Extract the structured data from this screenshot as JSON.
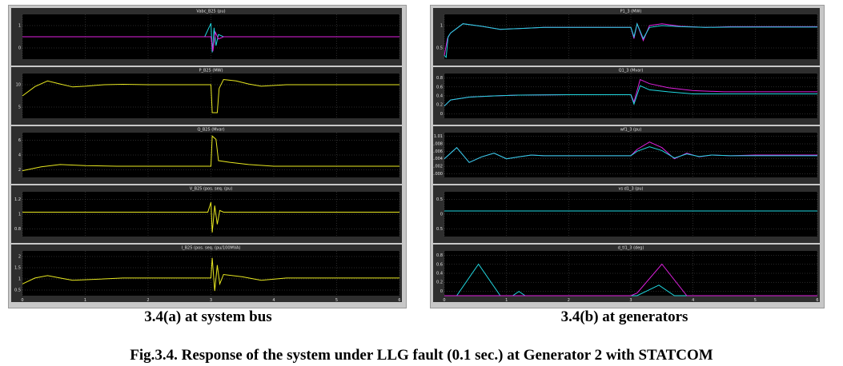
{
  "figure": {
    "caption": "Fig.3.4. Response of the system under LLG fault (0.1 sec.) at Generator 2 with STATCOM",
    "left_caption": "3.4(a) at system bus",
    "right_caption": "3.4(b) at generators"
  },
  "colors": {
    "plot_bg": "#000000",
    "grid": "#555555",
    "frame": "#c8c8c8",
    "yellow": "#e8e820",
    "cyan": "#20d8e0",
    "magenta": "#e020e0"
  },
  "chart_data": [
    {
      "type": "line",
      "group": "a",
      "title": "Vabc_B25 (pu)",
      "ylim": [
        0,
        2
      ],
      "yticks": [
        "1",
        "0"
      ],
      "x_ticks": [
        "0",
        "1",
        "2",
        "3",
        "4",
        "5",
        "6"
      ],
      "series": [
        {
          "color": "cyan",
          "x": [
            0,
            2.9,
            3.0,
            3.02,
            3.05,
            3.08,
            3.12,
            3.2,
            6
          ],
          "y": [
            1,
            1,
            1.6,
            0.3,
            1.4,
            0.6,
            1.1,
            1,
            1
          ]
        },
        {
          "color": "magenta",
          "x": [
            0,
            3.0,
            3.03,
            3.07,
            3.12,
            3.2,
            6
          ],
          "y": [
            1,
            1,
            0.35,
            1.2,
            0.9,
            1,
            1
          ]
        }
      ]
    },
    {
      "type": "line",
      "group": "a",
      "title": "P_B25 (MW)",
      "ylim": [
        0,
        12
      ],
      "yticks": [
        "10",
        "5"
      ],
      "x_ticks": [
        "0",
        "1",
        "2",
        "3",
        "4",
        "5",
        "6"
      ],
      "series": [
        {
          "color": "yellow",
          "x": [
            0,
            0.2,
            0.4,
            0.6,
            0.8,
            1.0,
            1.3,
            1.6,
            2.0,
            3.0,
            3.02,
            3.1,
            3.13,
            3.2,
            3.4,
            3.6,
            3.8,
            4.2,
            4.6,
            6
          ],
          "y": [
            6,
            8.5,
            10,
            9.2,
            8.4,
            8.6,
            9,
            9.1,
            9,
            9,
            1.5,
            1.5,
            8,
            10.4,
            10,
            9.2,
            8.6,
            9,
            9,
            9
          ]
        }
      ]
    },
    {
      "type": "line",
      "group": "a",
      "title": "Q_B25 (Mvar)",
      "ylim": [
        0,
        8
      ],
      "yticks": [
        "6",
        "4",
        "2"
      ],
      "x_ticks": [
        "0",
        "1",
        "2",
        "3",
        "4",
        "5",
        "6"
      ],
      "series": [
        {
          "color": "yellow",
          "x": [
            0,
            0.3,
            0.6,
            1.0,
            1.5,
            2.0,
            3.0,
            3.02,
            3.08,
            3.12,
            3.3,
            3.6,
            4.0,
            6
          ],
          "y": [
            1.2,
            1.9,
            2.3,
            2.1,
            2,
            2,
            2,
            7.4,
            6.8,
            3,
            2.7,
            2.3,
            2,
            2
          ]
        }
      ]
    },
    {
      "type": "line",
      "group": "a",
      "title": "V_B25 (pos. seq. (pu)",
      "ylim": [
        0.7,
        1.25
      ],
      "yticks": [
        "1.2",
        "1",
        "0.8"
      ],
      "x_ticks": [
        "0",
        "1",
        "2",
        "3",
        "4",
        "5",
        "6"
      ],
      "series": [
        {
          "color": "yellow",
          "x": [
            0,
            2.95,
            3.0,
            3.02,
            3.06,
            3.1,
            3.14,
            3.2,
            6
          ],
          "y": [
            1,
            1,
            1.12,
            0.75,
            1.08,
            0.85,
            1.02,
            1,
            1
          ]
        }
      ]
    },
    {
      "type": "line",
      "group": "a",
      "title": "I_B25 (pos. seq. (pu/100MVA)",
      "ylim": [
        0.2,
        2.1
      ],
      "yticks": [
        "2",
        "1.5",
        "1",
        "0.5"
      ],
      "x_ticks": [
        "0",
        "1",
        "2",
        "3",
        "4",
        "5",
        "6"
      ],
      "series": [
        {
          "color": "yellow",
          "x": [
            0,
            0.2,
            0.4,
            0.6,
            0.8,
            1.2,
            1.6,
            3.0,
            3.02,
            3.06,
            3.1,
            3.14,
            3.2,
            3.5,
            3.8,
            4.2,
            6
          ],
          "y": [
            0.7,
            0.95,
            1.05,
            0.95,
            0.85,
            0.9,
            0.95,
            0.95,
            1.8,
            0.4,
            1.5,
            0.7,
            1.1,
            1.0,
            0.85,
            0.95,
            0.95
          ]
        }
      ]
    },
    {
      "type": "line",
      "group": "b",
      "title": "P1_3 (MW)",
      "ylim": [
        0,
        1.2
      ],
      "yticks": [
        "1",
        "0.5"
      ],
      "x_ticks": [
        "0",
        "1",
        "2",
        "3",
        "4",
        "5",
        "6"
      ],
      "series": [
        {
          "color": "magenta",
          "x": [
            0,
            0.05,
            0.1,
            0.3,
            0.6,
            0.9,
            1.2,
            1.6,
            2.0,
            3.0,
            3.05,
            3.1,
            3.2,
            3.3,
            3.5,
            3.8,
            4.2,
            4.6,
            6
          ],
          "y": [
            0.1,
            0.55,
            0.7,
            0.95,
            0.88,
            0.8,
            0.82,
            0.85,
            0.85,
            0.85,
            0.55,
            0.95,
            0.5,
            0.9,
            0.95,
            0.88,
            0.85,
            0.87,
            0.87
          ]
        },
        {
          "color": "cyan",
          "x": [
            0,
            0.03,
            0.06,
            0.1,
            0.3,
            0.6,
            0.9,
            1.2,
            1.6,
            2.0,
            3.0,
            3.05,
            3.1,
            3.2,
            3.3,
            3.5,
            3.8,
            4.2,
            4.6,
            6
          ],
          "y": [
            0.1,
            0.05,
            0.6,
            0.7,
            0.95,
            0.88,
            0.8,
            0.82,
            0.85,
            0.85,
            0.85,
            0.6,
            0.95,
            0.55,
            0.85,
            0.9,
            0.87,
            0.85,
            0.86,
            0.86
          ]
        }
      ]
    },
    {
      "type": "line",
      "group": "b",
      "title": "Q1_3 (Mvar)",
      "ylim": [
        -0.1,
        1.0
      ],
      "yticks": [
        "0.8",
        "0.6",
        "0.4",
        "0.2",
        "0"
      ],
      "x_ticks": [
        "0",
        "1",
        "2",
        "3",
        "4",
        "5",
        "6"
      ],
      "series": [
        {
          "color": "magenta",
          "x": [
            0,
            0.1,
            0.4,
            0.8,
            1.2,
            2.0,
            3.0,
            3.05,
            3.15,
            3.3,
            3.6,
            4.0,
            4.5,
            6
          ],
          "y": [
            0.2,
            0.35,
            0.42,
            0.45,
            0.47,
            0.48,
            0.48,
            0.3,
            0.85,
            0.75,
            0.65,
            0.58,
            0.55,
            0.55
          ]
        },
        {
          "color": "cyan",
          "x": [
            0,
            0.1,
            0.4,
            0.8,
            1.2,
            2.0,
            3.0,
            3.05,
            3.15,
            3.3,
            3.6,
            4.0,
            6
          ],
          "y": [
            0.2,
            0.35,
            0.42,
            0.45,
            0.47,
            0.48,
            0.48,
            0.25,
            0.7,
            0.6,
            0.55,
            0.5,
            0.5
          ]
        }
      ]
    },
    {
      "type": "line",
      "group": "b",
      "title": "wf1_3 (pu)",
      "ylim": [
        1.0,
        1.012
      ],
      "yticks": [
        "1.01",
        "1.008",
        "1.006",
        "1.004",
        "1.002",
        "1.000"
      ],
      "x_ticks": [
        "0",
        "1",
        "2",
        "3",
        "4",
        "5",
        "6"
      ],
      "series": [
        {
          "color": "magenta",
          "x": [
            0,
            0.2,
            0.4,
            0.6,
            0.8,
            1.0,
            1.2,
            1.4,
            1.6,
            2.0,
            3.0,
            3.1,
            3.3,
            3.5,
            3.7,
            3.9,
            4.1,
            4.3,
            4.6,
            5.0,
            6
          ],
          "y": [
            1.005,
            1.008,
            1.004,
            1.0055,
            1.0065,
            1.005,
            1.0055,
            1.006,
            1.0058,
            1.0058,
            1.0058,
            1.0075,
            1.0095,
            1.008,
            1.005,
            1.0065,
            1.0055,
            1.006,
            1.0058,
            1.006,
            1.006
          ]
        },
        {
          "color": "cyan",
          "x": [
            0,
            0.2,
            0.4,
            0.6,
            0.8,
            1.0,
            1.2,
            1.4,
            1.6,
            2.0,
            3.0,
            3.1,
            3.3,
            3.5,
            3.7,
            3.9,
            4.1,
            4.3,
            4.6,
            6
          ],
          "y": [
            1.005,
            1.008,
            1.004,
            1.0055,
            1.0065,
            1.005,
            1.0055,
            1.006,
            1.0058,
            1.0058,
            1.0058,
            1.007,
            1.0082,
            1.0072,
            1.0052,
            1.0063,
            1.0056,
            1.006,
            1.0058,
            1.0058
          ]
        }
      ]
    },
    {
      "type": "line",
      "group": "b",
      "title": "vs d1_3 (pu)",
      "ylim": [
        -0.1,
        0.6
      ],
      "yticks": [
        "0.5",
        "0",
        "0.5"
      ],
      "x_ticks": [
        "0",
        "1",
        "2",
        "3",
        "4",
        "5",
        "6"
      ],
      "series": [
        {
          "color": "cyan",
          "x": [
            0,
            6
          ],
          "y": [
            0.3,
            0.3
          ]
        }
      ]
    },
    {
      "type": "line",
      "group": "b",
      "title": "d_tl1_3 (deg)",
      "ylim": [
        0,
        0.85
      ],
      "yticks": [
        "0.8",
        "0.6",
        "0.4",
        "0.2",
        "0"
      ],
      "x_ticks": [
        "0",
        "1",
        "2",
        "3",
        "4",
        "5",
        "6"
      ],
      "series": [
        {
          "color": "cyan",
          "x": [
            0,
            0.2,
            0.55,
            0.9,
            1.1,
            1.2,
            1.3,
            3.0,
            3.1,
            3.45,
            3.7,
            4.0,
            6
          ],
          "y": [
            0,
            0,
            0.6,
            0,
            0,
            0.08,
            0,
            0,
            0,
            0.2,
            0,
            0,
            0
          ]
        },
        {
          "color": "magenta",
          "x": [
            0,
            3.0,
            3.1,
            3.5,
            3.9,
            6
          ],
          "y": [
            0,
            0,
            0.05,
            0.6,
            0,
            0
          ]
        }
      ]
    }
  ]
}
